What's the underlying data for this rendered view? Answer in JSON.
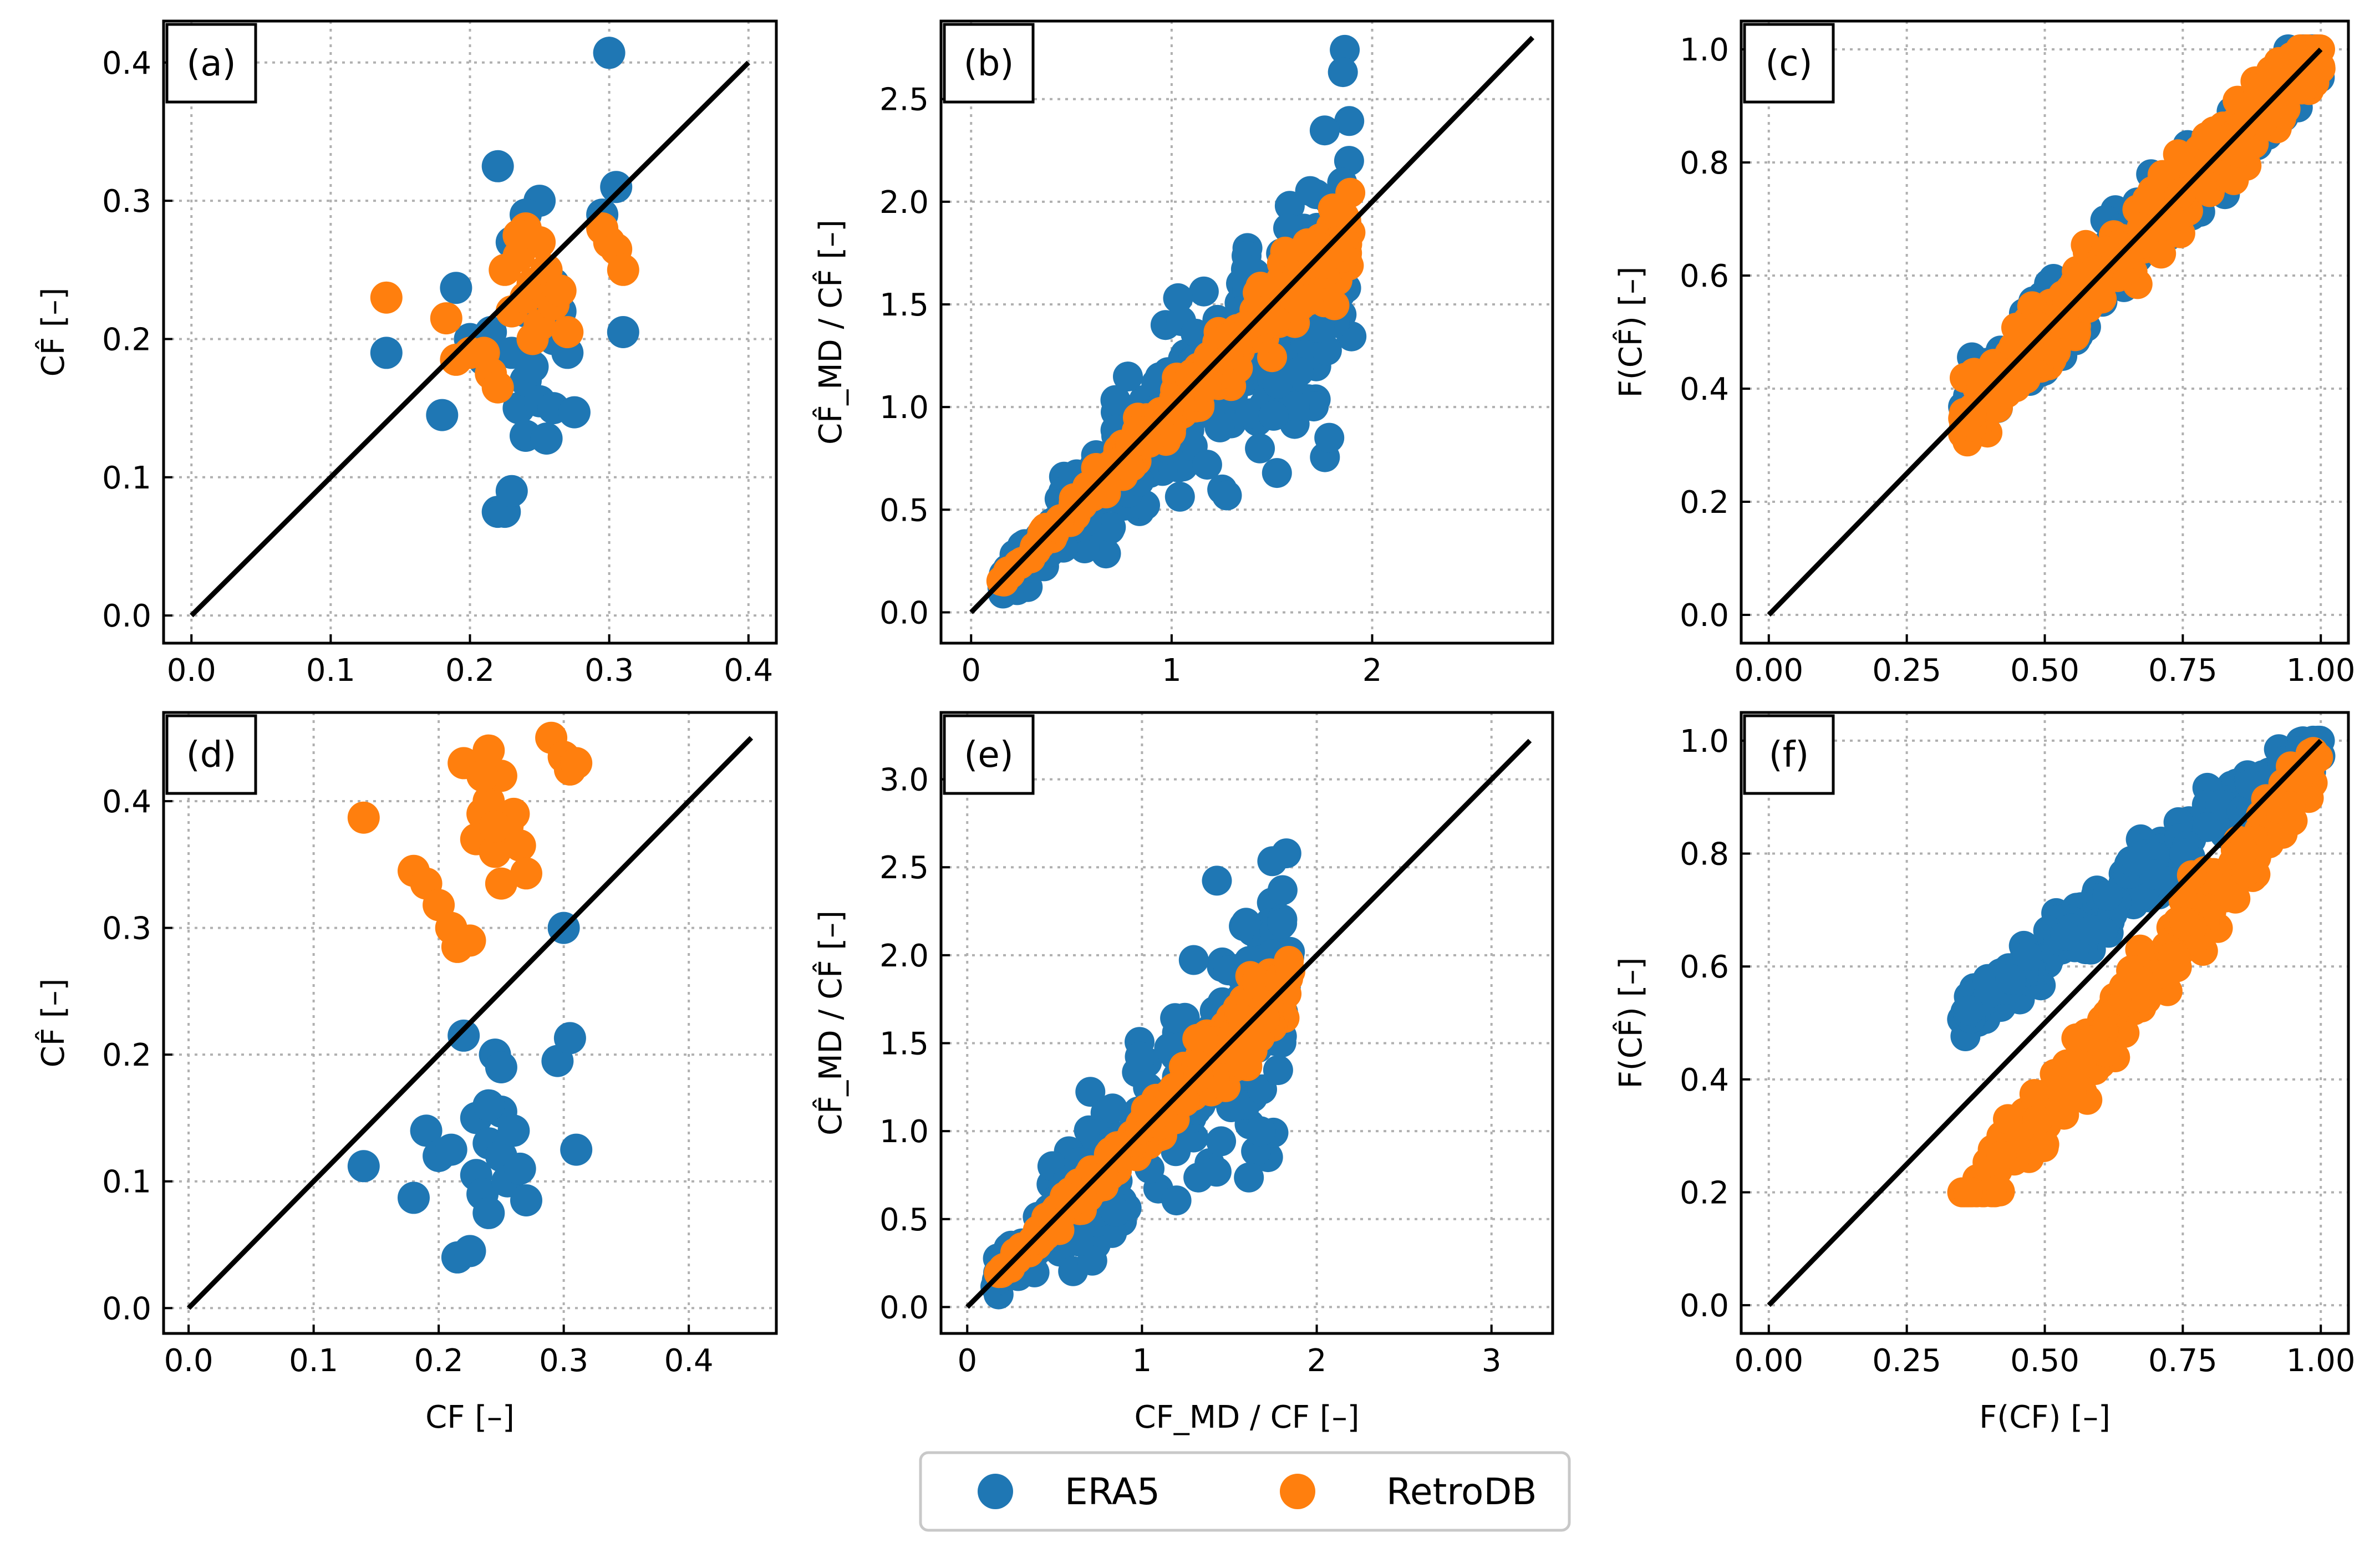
{
  "colors": {
    "era5": "#1f77b4",
    "retrodb": "#ff7f0e",
    "line": "#000000"
  },
  "legend": {
    "placement": "bottom-center",
    "items": [
      {
        "label": "ERA5",
        "color": "#1f77b4"
      },
      {
        "label": "RetroDB",
        "color": "#ff7f0e"
      }
    ]
  },
  "chart_data": [
    {
      "type": "scatter",
      "panel": "(a)",
      "xlim": [
        -0.02,
        0.42
      ],
      "ylim": [
        -0.02,
        0.43
      ],
      "xticks": [
        0.0,
        0.1,
        0.2,
        0.3,
        0.4
      ],
      "xtick_labels": [
        "0.0",
        "0.1",
        "0.2",
        "0.3",
        "0.4"
      ],
      "yticks": [
        0.0,
        0.1,
        0.2,
        0.3,
        0.4
      ],
      "ytick_labels": [
        "0.0",
        "0.1",
        "0.2",
        "0.3",
        "0.4"
      ],
      "xlabel": "",
      "ylabel": "CF̂ [–]",
      "grid": true,
      "identity_line": [
        [
          0,
          0
        ],
        [
          0.4,
          0.4
        ]
      ],
      "series": [
        {
          "name": "ERA5",
          "points": [
            [
              0.14,
              0.19
            ],
            [
              0.18,
              0.145
            ],
            [
              0.19,
              0.237
            ],
            [
              0.2,
              0.2
            ],
            [
              0.21,
              0.185
            ],
            [
              0.215,
              0.205
            ],
            [
              0.22,
              0.075
            ],
            [
              0.225,
              0.075
            ],
            [
              0.22,
              0.325
            ],
            [
              0.23,
              0.09
            ],
            [
              0.23,
              0.19
            ],
            [
              0.235,
              0.15
            ],
            [
              0.24,
              0.17
            ],
            [
              0.24,
              0.13
            ],
            [
              0.24,
              0.22
            ],
            [
              0.245,
              0.18
            ],
            [
              0.25,
              0.3
            ],
            [
              0.25,
              0.155
            ],
            [
              0.255,
              0.128
            ],
            [
              0.26,
              0.24
            ],
            [
              0.26,
              0.2
            ],
            [
              0.26,
              0.15
            ],
            [
              0.265,
              0.22
            ],
            [
              0.27,
              0.19
            ],
            [
              0.275,
              0.147
            ],
            [
              0.295,
              0.29
            ],
            [
              0.3,
              0.407
            ],
            [
              0.305,
              0.31
            ],
            [
              0.31,
              0.205
            ],
            [
              0.23,
              0.27
            ],
            [
              0.24,
              0.29
            ]
          ]
        },
        {
          "name": "RetroDB",
          "points": [
            [
              0.14,
              0.23
            ],
            [
              0.183,
              0.215
            ],
            [
              0.19,
              0.185
            ],
            [
              0.2,
              0.19
            ],
            [
              0.21,
              0.19
            ],
            [
              0.215,
              0.175
            ],
            [
              0.22,
              0.165
            ],
            [
              0.225,
              0.25
            ],
            [
              0.23,
              0.22
            ],
            [
              0.235,
              0.26
            ],
            [
              0.24,
              0.28
            ],
            [
              0.24,
              0.23
            ],
            [
              0.245,
              0.24
            ],
            [
              0.25,
              0.27
            ],
            [
              0.25,
              0.21
            ],
            [
              0.255,
              0.25
            ],
            [
              0.26,
              0.225
            ],
            [
              0.265,
              0.235
            ],
            [
              0.27,
              0.205
            ],
            [
              0.295,
              0.28
            ],
            [
              0.3,
              0.27
            ],
            [
              0.305,
              0.265
            ],
            [
              0.31,
              0.25
            ],
            [
              0.245,
              0.2
            ],
            [
              0.235,
              0.275
            ]
          ]
        }
      ]
    },
    {
      "type": "scatter",
      "panel": "(b)",
      "xlim": [
        -0.15,
        2.9
      ],
      "ylim": [
        -0.15,
        2.88
      ],
      "xticks": [
        0,
        1,
        2
      ],
      "xtick_labels": [
        "0",
        "1",
        "2"
      ],
      "yticks": [
        0.0,
        0.5,
        1.0,
        1.5,
        2.0,
        2.5
      ],
      "ytick_labels": [
        "0.0",
        "0.5",
        "1.0",
        "1.5",
        "2.0",
        "2.5"
      ],
      "xlabel": "",
      "ylabel": "CF̂_MD / CF̂ [–]",
      "grid": true,
      "identity_line": [
        [
          0,
          0
        ],
        [
          2.8,
          2.8
        ]
      ],
      "series": [
        {
          "name": "ERA5",
          "generated_cloud": "wide band around identity, y spread up to 2.8"
        },
        {
          "name": "RetroDB",
          "generated_cloud": "narrow band around identity, x range 0.15–1.9"
        }
      ]
    },
    {
      "type": "scatter",
      "panel": "(c)",
      "xlim": [
        -0.05,
        1.05
      ],
      "ylim": [
        -0.05,
        1.05
      ],
      "xticks": [
        0.0,
        0.25,
        0.5,
        0.75,
        1.0
      ],
      "xtick_labels": [
        "0.00",
        "0.25",
        "0.50",
        "0.75",
        "1.00"
      ],
      "yticks": [
        0.0,
        0.2,
        0.4,
        0.6,
        0.8,
        1.0
      ],
      "ytick_labels": [
        "0.0",
        "0.2",
        "0.4",
        "0.6",
        "0.8",
        "1.0"
      ],
      "xlabel": "",
      "ylabel": "F(CF̂) [–]",
      "grid": true,
      "identity_line": [
        [
          0,
          0
        ],
        [
          1,
          1
        ]
      ],
      "series": [
        {
          "name": "ERA5",
          "generated_cloud": "points near identity, x 0.35–1.0"
        },
        {
          "name": "RetroDB",
          "generated_cloud": "points near identity, x 0.35–1.0"
        }
      ]
    },
    {
      "type": "scatter",
      "panel": "(d)",
      "xlim": [
        -0.02,
        0.47
      ],
      "ylim": [
        -0.02,
        0.47
      ],
      "xticks": [
        0.0,
        0.1,
        0.2,
        0.3,
        0.4
      ],
      "xtick_labels": [
        "0.0",
        "0.1",
        "0.2",
        "0.3",
        "0.4"
      ],
      "yticks": [
        0.0,
        0.1,
        0.2,
        0.3,
        0.4
      ],
      "ytick_labels": [
        "0.0",
        "0.1",
        "0.2",
        "0.3",
        "0.4"
      ],
      "xlabel": "CF [–]",
      "ylabel": "CF̂ [–]",
      "grid": true,
      "identity_line": [
        [
          0,
          0
        ],
        [
          0.45,
          0.45
        ]
      ],
      "series": [
        {
          "name": "ERA5",
          "points": [
            [
              0.14,
              0.112
            ],
            [
              0.18,
              0.087
            ],
            [
              0.19,
              0.14
            ],
            [
              0.2,
              0.12
            ],
            [
              0.21,
              0.125
            ],
            [
              0.215,
              0.04
            ],
            [
              0.22,
              0.215
            ],
            [
              0.225,
              0.045
            ],
            [
              0.23,
              0.105
            ],
            [
              0.23,
              0.15
            ],
            [
              0.235,
              0.09
            ],
            [
              0.24,
              0.13
            ],
            [
              0.24,
              0.075
            ],
            [
              0.245,
              0.2
            ],
            [
              0.25,
              0.155
            ],
            [
              0.25,
              0.12
            ],
            [
              0.255,
              0.1
            ],
            [
              0.26,
              0.14
            ],
            [
              0.265,
              0.11
            ],
            [
              0.27,
              0.085
            ],
            [
              0.295,
              0.195
            ],
            [
              0.3,
              0.3
            ],
            [
              0.305,
              0.213
            ],
            [
              0.31,
              0.125
            ],
            [
              0.24,
              0.16
            ],
            [
              0.25,
              0.19
            ]
          ]
        },
        {
          "name": "RetroDB",
          "points": [
            [
              0.14,
              0.387
            ],
            [
              0.18,
              0.345
            ],
            [
              0.19,
              0.335
            ],
            [
              0.2,
              0.318
            ],
            [
              0.21,
              0.3
            ],
            [
              0.215,
              0.285
            ],
            [
              0.22,
              0.43
            ],
            [
              0.225,
              0.29
            ],
            [
              0.23,
              0.37
            ],
            [
              0.235,
              0.39
            ],
            [
              0.24,
              0.44
            ],
            [
              0.24,
              0.4
            ],
            [
              0.245,
              0.36
            ],
            [
              0.25,
              0.335
            ],
            [
              0.25,
              0.42
            ],
            [
              0.255,
              0.38
            ],
            [
              0.26,
              0.39
            ],
            [
              0.265,
              0.365
            ],
            [
              0.27,
              0.343
            ],
            [
              0.29,
              0.45
            ],
            [
              0.3,
              0.435
            ],
            [
              0.305,
              0.425
            ],
            [
              0.31,
              0.43
            ],
            [
              0.235,
              0.42
            ],
            [
              0.245,
              0.38
            ]
          ]
        }
      ]
    },
    {
      "type": "scatter",
      "panel": "(e)",
      "xlim": [
        -0.15,
        3.35
      ],
      "ylim": [
        -0.15,
        3.38
      ],
      "xticks": [
        0,
        1,
        2,
        3
      ],
      "xtick_labels": [
        "0",
        "1",
        "2",
        "3"
      ],
      "yticks": [
        0.0,
        0.5,
        1.0,
        1.5,
        2.0,
        2.5,
        3.0
      ],
      "ytick_labels": [
        "0.0",
        "0.5",
        "1.0",
        "1.5",
        "2.0",
        "2.5",
        "3.0"
      ],
      "xlabel": "CF_MD / CF [–]",
      "ylabel": "CF̂_MD / CF̂ [–]",
      "grid": true,
      "identity_line": [
        [
          0,
          0
        ],
        [
          3.22,
          3.22
        ]
      ],
      "series": [
        {
          "name": "ERA5",
          "generated_cloud": "wide band, y spread up to 3.2"
        },
        {
          "name": "RetroDB",
          "generated_cloud": "narrow band around identity, x 0.15–1.9"
        }
      ]
    },
    {
      "type": "scatter",
      "panel": "(f)",
      "xlim": [
        -0.05,
        1.05
      ],
      "ylim": [
        -0.05,
        1.05
      ],
      "xticks": [
        0.0,
        0.25,
        0.5,
        0.75,
        1.0
      ],
      "xtick_labels": [
        "0.00",
        "0.25",
        "0.50",
        "0.75",
        "1.00"
      ],
      "yticks": [
        0.0,
        0.2,
        0.4,
        0.6,
        0.8,
        1.0
      ],
      "ytick_labels": [
        "0.0",
        "0.2",
        "0.4",
        "0.6",
        "0.8",
        "1.0"
      ],
      "xlabel": "F(CF) [–]",
      "ylabel": "F(CF̂) [–]",
      "grid": true,
      "identity_line": [
        [
          0,
          0
        ],
        [
          1,
          1
        ]
      ],
      "series": [
        {
          "name": "ERA5",
          "generated_cloud": "above identity, x 0.35–1.0"
        },
        {
          "name": "RetroDB",
          "generated_cloud": "below identity, x 0.35–1.0"
        }
      ]
    }
  ]
}
